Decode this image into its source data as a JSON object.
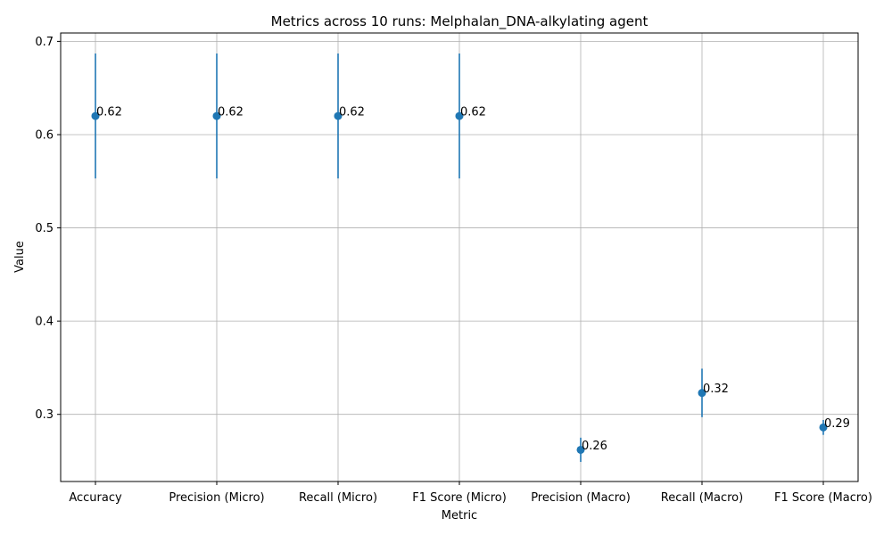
{
  "chart_data": {
    "type": "scatter",
    "title": "Metrics across 10 runs: Melphalan_DNA-alkylating agent",
    "xlabel": "Metric",
    "ylabel": "Value",
    "categories": [
      "Accuracy",
      "Precision (Micro)",
      "Recall (Micro)",
      "F1 Score (Micro)",
      "Precision (Macro)",
      "Recall (Macro)",
      "F1 Score (Macro)"
    ],
    "values": [
      0.62,
      0.62,
      0.62,
      0.62,
      0.262,
      0.323,
      0.286
    ],
    "error_low": [
      0.553,
      0.553,
      0.553,
      0.553,
      0.249,
      0.297,
      0.278
    ],
    "error_high": [
      0.687,
      0.687,
      0.687,
      0.687,
      0.275,
      0.349,
      0.294
    ],
    "data_labels": [
      "0.62",
      "0.62",
      "0.62",
      "0.62",
      "0.26",
      "0.32",
      "0.29"
    ],
    "ylim": [
      0.228,
      0.709
    ],
    "yticks": [
      0.3,
      0.4,
      0.5,
      0.6,
      0.7
    ],
    "ytick_labels": [
      "0.3",
      "0.4",
      "0.5",
      "0.6",
      "0.7"
    ],
    "grid": true,
    "marker_color": "#1f77b4"
  }
}
